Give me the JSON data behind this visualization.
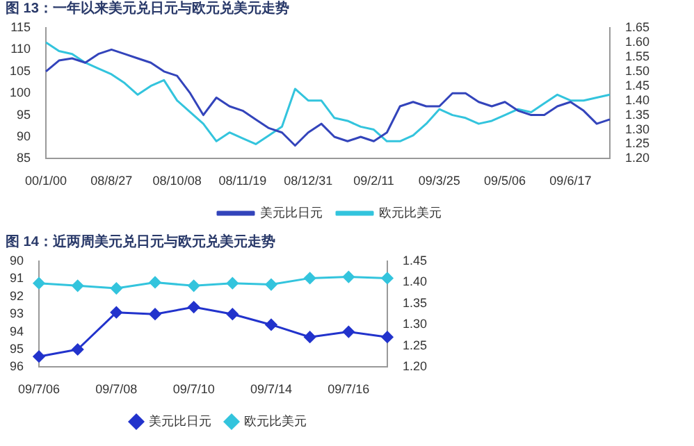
{
  "chart_data": [
    {
      "type": "line",
      "title": "图 13：一年以来美元兑日元与欧元兑美元走势",
      "categories": [
        "00/1/00",
        null,
        null,
        null,
        null,
        "08/8/27",
        null,
        null,
        null,
        null,
        "08/10/08",
        null,
        null,
        null,
        null,
        "08/11/19",
        null,
        null,
        null,
        null,
        "08/12/31",
        null,
        null,
        null,
        null,
        "09/2/11",
        null,
        null,
        null,
        null,
        "09/3/25",
        null,
        null,
        null,
        null,
        "09/5/06",
        null,
        null,
        null,
        null,
        "09/6/17",
        null,
        null,
        null
      ],
      "series": [
        {
          "name": "美元比日元",
          "color": "#3344bb",
          "values": [
            105,
            107.5,
            108,
            107,
            109,
            110,
            109,
            108,
            107,
            105,
            104,
            100,
            95,
            99,
            97,
            96,
            94,
            92,
            91,
            88,
            91,
            93,
            90,
            89,
            90,
            89,
            91,
            97,
            98,
            97,
            97,
            100,
            100,
            98,
            97,
            98,
            96,
            95,
            95,
            97,
            98,
            96,
            93,
            94
          ]
        },
        {
          "name": "欧元比美元",
          "color": "#33c4dd",
          "axis": "y2",
          "values": [
            1.6,
            1.57,
            1.56,
            1.53,
            1.51,
            1.49,
            1.46,
            1.42,
            1.45,
            1.47,
            1.4,
            1.36,
            1.32,
            1.26,
            1.29,
            1.27,
            1.25,
            1.28,
            1.31,
            1.44,
            1.4,
            1.4,
            1.34,
            1.33,
            1.31,
            1.3,
            1.26,
            1.26,
            1.28,
            1.32,
            1.37,
            1.35,
            1.34,
            1.32,
            1.33,
            1.35,
            1.37,
            1.36,
            1.39,
            1.42,
            1.4,
            1.4,
            1.41,
            1.42
          ]
        }
      ],
      "ylim": [
        85,
        115
      ],
      "yticks": [
        85,
        90,
        95,
        100,
        105,
        110,
        115
      ],
      "y2lim": [
        1.2,
        1.65
      ],
      "y2ticks": [
        {
          "value": 1.2,
          "label": "1.20"
        },
        {
          "value": 1.25,
          "label": "1.25"
        },
        {
          "value": 1.3,
          "label": "1.30"
        },
        {
          "value": 1.35,
          "label": "1.35"
        },
        {
          "value": 1.4,
          "label": "1.40"
        },
        {
          "value": 1.45,
          "label": "1.45"
        },
        {
          "value": 1.5,
          "label": "1.50"
        },
        {
          "value": 1.55,
          "label": "1.55"
        },
        {
          "value": 1.6,
          "label": "1.60"
        },
        {
          "value": 1.65,
          "label": "1.65"
        }
      ],
      "legend": "bottom",
      "marker": "none",
      "grid": false
    },
    {
      "type": "line",
      "title": "图 14：近两周美元兑日元与欧元兑美元走势",
      "categories": [
        "09/7/06",
        null,
        "09/7/08",
        null,
        "09/7/10",
        null,
        "09/7/14",
        null,
        "09/7/16",
        null
      ],
      "series": [
        {
          "name": "美元比日元",
          "color": "#2233cc",
          "values": [
            95.4,
            95.0,
            92.9,
            93.0,
            92.6,
            93.0,
            93.6,
            94.3,
            94.0,
            94.3
          ]
        },
        {
          "name": "欧元比美元",
          "color": "#33c4dd",
          "axis": "y2",
          "values": [
            1.398,
            1.392,
            1.386,
            1.4,
            1.392,
            1.398,
            1.395,
            1.41,
            1.413,
            1.41
          ]
        }
      ],
      "ylim": [
        96,
        90
      ],
      "yticks": [
        90,
        91,
        92,
        93,
        94,
        95,
        96
      ],
      "y2lim": [
        1.2,
        1.45
      ],
      "y2ticks": [
        {
          "value": 1.2,
          "label": "1.20"
        },
        {
          "value": 1.25,
          "label": "1.25"
        },
        {
          "value": 1.3,
          "label": "1.30"
        },
        {
          "value": 1.35,
          "label": "1.35"
        },
        {
          "value": 1.4,
          "label": "1.40"
        },
        {
          "value": 1.45,
          "label": "1.45"
        }
      ],
      "legend": "bottom",
      "marker": "diamond",
      "grid": false
    }
  ]
}
